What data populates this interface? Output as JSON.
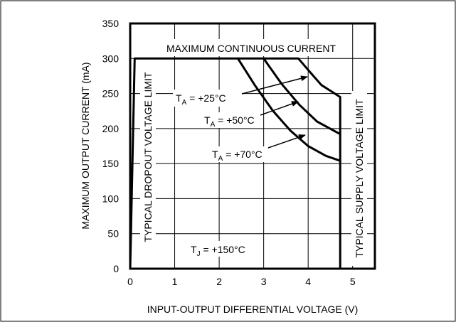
{
  "chart_data": {
    "type": "line",
    "title": "",
    "xlabel": "INPUT-OUTPUT DIFFERENTIAL VOLTAGE (V)",
    "ylabel": "MAXIMUM OUTPUT CURRENT (mA)",
    "xlim": [
      0,
      5.5
    ],
    "ylim": [
      0,
      350
    ],
    "xticks": [
      "0",
      "1",
      "2",
      "3",
      "4",
      "5"
    ],
    "yticks": [
      "0",
      "50",
      "100",
      "150",
      "200",
      "250",
      "300",
      "350"
    ],
    "grid": true,
    "series": [
      {
        "points": [
          [
            0.0,
            0
          ],
          [
            0.1,
            300
          ],
          [
            3.78,
            300
          ],
          [
            4.05,
            280
          ],
          [
            4.3,
            262
          ],
          [
            4.72,
            245
          ],
          [
            4.72,
            0
          ]
        ]
      },
      {
        "points": [
          [
            3.0,
            300
          ],
          [
            3.4,
            264
          ],
          [
            3.8,
            234
          ],
          [
            4.2,
            210
          ],
          [
            4.72,
            192
          ]
        ]
      },
      {
        "points": [
          [
            2.42,
            300
          ],
          [
            2.8,
            262
          ],
          [
            3.2,
            226
          ],
          [
            3.6,
            197
          ],
          [
            4.0,
            175
          ],
          [
            4.4,
            161
          ],
          [
            4.72,
            154
          ]
        ]
      }
    ],
    "annotations": {
      "max_current": "MAXIMUM CONTINUOUS CURRENT",
      "dropout": "TYPICAL DROPOUT VOLTAGE LIMIT",
      "supply": "TYPICAL SUPPLY VOLTAGE LIMIT",
      "ta25": {
        "prefix": "T",
        "sub": "A",
        "suffix": " = +25°C"
      },
      "ta50": {
        "prefix": "T",
        "sub": "A",
        "suffix": " = +50°C"
      },
      "ta70": {
        "prefix": "T",
        "sub": "A",
        "suffix": " = +70°C"
      },
      "tj": {
        "prefix": "T",
        "sub": "J",
        "suffix": " = +150°C"
      }
    }
  }
}
